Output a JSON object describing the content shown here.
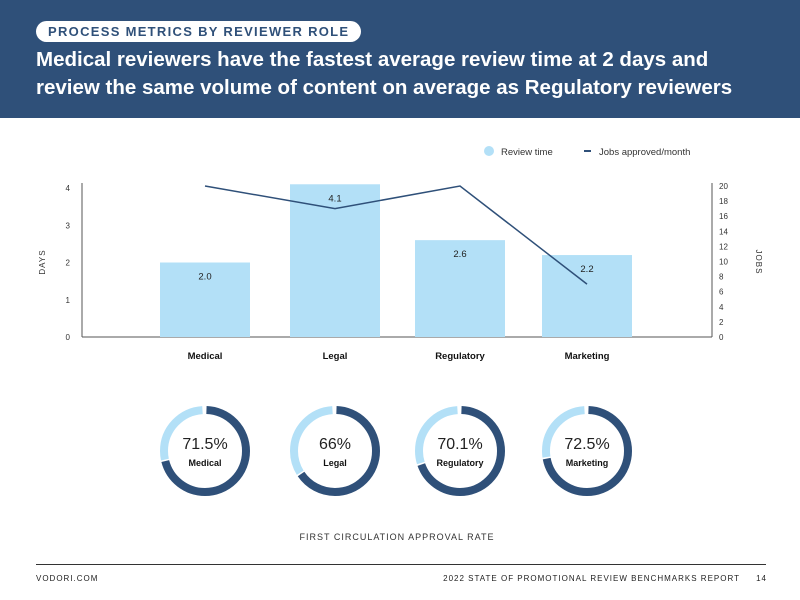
{
  "header": {
    "section_label": "PROCESS METRICS BY REVIEWER ROLE",
    "headline": "Medical reviewers have the fastest average review time at 2 days and review the same volume of content on average as Regulatory reviewers"
  },
  "colors": {
    "header_bg": "#2f5079",
    "bar": "#b3e0f7",
    "line": "#2f5079",
    "donut_dark": "#2f5079",
    "donut_light": "#b3e0f7"
  },
  "chart_data": [
    {
      "type": "bar+line",
      "categories": [
        "Medical",
        "Legal",
        "Regulatory",
        "Marketing"
      ],
      "series": [
        {
          "name": "Review time",
          "type": "bar",
          "axis": "left",
          "values": [
            2.0,
            4.1,
            2.6,
            2.2
          ],
          "data_labels": [
            "2.0",
            "4.1",
            "2.6",
            "2.2"
          ]
        },
        {
          "name": "Jobs approved/month",
          "type": "line",
          "axis": "right",
          "values": [
            20,
            17,
            20,
            7
          ]
        }
      ],
      "ylabel": "DAYS",
      "y2label": "JOBS",
      "ylim": [
        0,
        4
      ],
      "y2lim": [
        0,
        20
      ],
      "yticks": [
        "0",
        "1",
        "2",
        "3",
        "4"
      ],
      "y2ticks": [
        "0",
        "2",
        "4",
        "6",
        "8",
        "10",
        "12",
        "14",
        "16",
        "18",
        "20"
      ],
      "grid": false,
      "legend": "top-right"
    },
    {
      "type": "pie",
      "variant": "donut",
      "title": "FIRST CIRCULATION APPROVAL RATE",
      "items": [
        {
          "label": "Medical",
          "value": 71.5,
          "text": "71.5%"
        },
        {
          "label": "Legal",
          "value": 66,
          "text": "66%"
        },
        {
          "label": "Regulatory",
          "value": 70.1,
          "text": "70.1%"
        },
        {
          "label": "Marketing",
          "value": 72.5,
          "text": "72.5%"
        }
      ]
    }
  ],
  "footer": {
    "left": "VODORI.COM",
    "right": "2022 STATE OF PROMOTIONAL REVIEW BENCHMARKS REPORT",
    "page": "14"
  }
}
